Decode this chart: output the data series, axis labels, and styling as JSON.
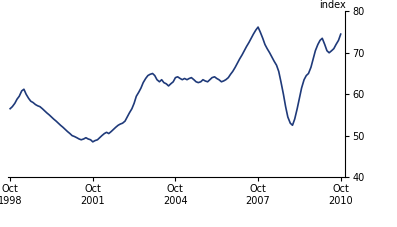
{
  "line_color": "#1F3A7A",
  "line_width": 1.2,
  "background_color": "#ffffff",
  "ylabel": "index",
  "ylim": [
    40,
    80
  ],
  "xlim_start": 1998.67,
  "xlim_end": 2010.92,
  "xtick_positions": [
    1998.75,
    2001.75,
    2004.75,
    2007.75,
    2010.75
  ],
  "xtick_labels": [
    "Oct\n1998",
    "Oct\n2001",
    "Oct\n2004",
    "Oct\n2007",
    "Oct\n2010"
  ],
  "ytick_positions": [
    40,
    50,
    60,
    70,
    80
  ],
  "ytick_labels": [
    "40",
    "50",
    "60",
    "70",
    "80"
  ],
  "data": [
    [
      1998.75,
      56.5
    ],
    [
      1998.83,
      57.0
    ],
    [
      1998.92,
      57.8
    ],
    [
      1999.0,
      58.8
    ],
    [
      1999.08,
      59.5
    ],
    [
      1999.17,
      60.8
    ],
    [
      1999.25,
      61.2
    ],
    [
      1999.33,
      60.0
    ],
    [
      1999.42,
      59.0
    ],
    [
      1999.5,
      58.3
    ],
    [
      1999.58,
      58.0
    ],
    [
      1999.67,
      57.5
    ],
    [
      1999.75,
      57.2
    ],
    [
      1999.83,
      57.0
    ],
    [
      1999.92,
      56.5
    ],
    [
      2000.0,
      56.0
    ],
    [
      2000.08,
      55.5
    ],
    [
      2000.17,
      55.0
    ],
    [
      2000.25,
      54.5
    ],
    [
      2000.33,
      54.0
    ],
    [
      2000.42,
      53.5
    ],
    [
      2000.5,
      53.0
    ],
    [
      2000.58,
      52.5
    ],
    [
      2000.67,
      52.0
    ],
    [
      2000.75,
      51.5
    ],
    [
      2000.83,
      51.0
    ],
    [
      2000.92,
      50.5
    ],
    [
      2001.0,
      50.0
    ],
    [
      2001.08,
      49.8
    ],
    [
      2001.17,
      49.5
    ],
    [
      2001.25,
      49.2
    ],
    [
      2001.33,
      49.0
    ],
    [
      2001.42,
      49.2
    ],
    [
      2001.5,
      49.5
    ],
    [
      2001.58,
      49.2
    ],
    [
      2001.67,
      49.0
    ],
    [
      2001.75,
      48.5
    ],
    [
      2001.83,
      48.8
    ],
    [
      2001.92,
      49.0
    ],
    [
      2002.0,
      49.5
    ],
    [
      2002.08,
      50.0
    ],
    [
      2002.17,
      50.5
    ],
    [
      2002.25,
      50.8
    ],
    [
      2002.33,
      50.5
    ],
    [
      2002.42,
      51.0
    ],
    [
      2002.5,
      51.5
    ],
    [
      2002.58,
      52.0
    ],
    [
      2002.67,
      52.5
    ],
    [
      2002.75,
      52.8
    ],
    [
      2002.83,
      53.0
    ],
    [
      2002.92,
      53.5
    ],
    [
      2003.0,
      54.5
    ],
    [
      2003.08,
      55.5
    ],
    [
      2003.17,
      56.5
    ],
    [
      2003.25,
      57.8
    ],
    [
      2003.33,
      59.5
    ],
    [
      2003.42,
      60.5
    ],
    [
      2003.5,
      61.5
    ],
    [
      2003.58,
      62.8
    ],
    [
      2003.67,
      63.8
    ],
    [
      2003.75,
      64.5
    ],
    [
      2003.83,
      64.8
    ],
    [
      2003.92,
      65.0
    ],
    [
      2004.0,
      64.5
    ],
    [
      2004.08,
      63.5
    ],
    [
      2004.17,
      63.0
    ],
    [
      2004.25,
      63.5
    ],
    [
      2004.33,
      62.8
    ],
    [
      2004.42,
      62.5
    ],
    [
      2004.5,
      62.0
    ],
    [
      2004.58,
      62.5
    ],
    [
      2004.67,
      63.0
    ],
    [
      2004.75,
      64.0
    ],
    [
      2004.83,
      64.2
    ],
    [
      2004.92,
      63.8
    ],
    [
      2005.0,
      63.5
    ],
    [
      2005.08,
      63.8
    ],
    [
      2005.17,
      63.5
    ],
    [
      2005.25,
      63.8
    ],
    [
      2005.33,
      64.0
    ],
    [
      2005.42,
      63.5
    ],
    [
      2005.5,
      63.0
    ],
    [
      2005.58,
      62.8
    ],
    [
      2005.67,
      63.0
    ],
    [
      2005.75,
      63.5
    ],
    [
      2005.83,
      63.2
    ],
    [
      2005.92,
      63.0
    ],
    [
      2006.0,
      63.5
    ],
    [
      2006.08,
      64.0
    ],
    [
      2006.17,
      64.2
    ],
    [
      2006.25,
      63.8
    ],
    [
      2006.33,
      63.5
    ],
    [
      2006.42,
      63.0
    ],
    [
      2006.5,
      63.2
    ],
    [
      2006.58,
      63.5
    ],
    [
      2006.67,
      64.0
    ],
    [
      2006.75,
      64.8
    ],
    [
      2006.83,
      65.5
    ],
    [
      2006.92,
      66.5
    ],
    [
      2007.0,
      67.5
    ],
    [
      2007.08,
      68.5
    ],
    [
      2007.17,
      69.5
    ],
    [
      2007.25,
      70.5
    ],
    [
      2007.33,
      71.5
    ],
    [
      2007.42,
      72.5
    ],
    [
      2007.5,
      73.5
    ],
    [
      2007.58,
      74.5
    ],
    [
      2007.67,
      75.5
    ],
    [
      2007.75,
      76.2
    ],
    [
      2007.83,
      75.0
    ],
    [
      2007.92,
      73.5
    ],
    [
      2008.0,
      72.0
    ],
    [
      2008.08,
      71.0
    ],
    [
      2008.17,
      70.0
    ],
    [
      2008.25,
      69.0
    ],
    [
      2008.33,
      68.0
    ],
    [
      2008.42,
      67.0
    ],
    [
      2008.5,
      65.5
    ],
    [
      2008.58,
      63.0
    ],
    [
      2008.67,
      60.0
    ],
    [
      2008.75,
      57.0
    ],
    [
      2008.83,
      54.5
    ],
    [
      2008.92,
      53.0
    ],
    [
      2009.0,
      52.5
    ],
    [
      2009.08,
      54.0
    ],
    [
      2009.17,
      56.5
    ],
    [
      2009.25,
      59.0
    ],
    [
      2009.33,
      61.5
    ],
    [
      2009.42,
      63.5
    ],
    [
      2009.5,
      64.5
    ],
    [
      2009.58,
      65.0
    ],
    [
      2009.67,
      66.5
    ],
    [
      2009.75,
      68.5
    ],
    [
      2009.83,
      70.5
    ],
    [
      2009.92,
      72.0
    ],
    [
      2010.0,
      73.0
    ],
    [
      2010.08,
      73.5
    ],
    [
      2010.17,
      72.0
    ],
    [
      2010.25,
      70.5
    ],
    [
      2010.33,
      70.0
    ],
    [
      2010.42,
      70.5
    ],
    [
      2010.5,
      71.0
    ],
    [
      2010.58,
      72.0
    ],
    [
      2010.67,
      73.0
    ],
    [
      2010.75,
      74.5
    ]
  ]
}
